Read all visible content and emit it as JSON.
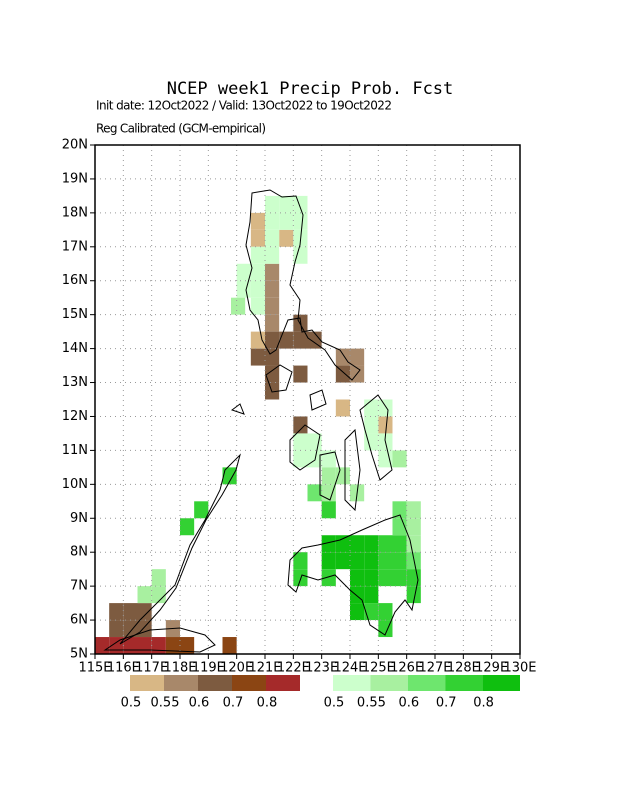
{
  "chart_data": {
    "type": "grid-map",
    "title": "NCEP week1 Precip Prob. Fcst",
    "subtitle": "Init date: 12Oct2022 / Valid: 13Oct2022 to 19Oct2022",
    "subtitle2": "Reg Calibrated (GCM-empirical)",
    "xlim": [
      115,
      130
    ],
    "ylim": [
      5,
      20
    ],
    "xticks": [
      {
        "value": 115,
        "label": "115E"
      },
      {
        "value": 116,
        "label": "116E"
      },
      {
        "value": 117,
        "label": "117E"
      },
      {
        "value": 118,
        "label": "118E"
      },
      {
        "value": 119,
        "label": "119E"
      },
      {
        "value": 120,
        "label": "120E"
      },
      {
        "value": 121,
        "label": "121E"
      },
      {
        "value": 122,
        "label": "122E"
      },
      {
        "value": 123,
        "label": "123E"
      },
      {
        "value": 124,
        "label": "124E"
      },
      {
        "value": 125,
        "label": "125E"
      },
      {
        "value": 126,
        "label": "126E"
      },
      {
        "value": 127,
        "label": "127E"
      },
      {
        "value": 128,
        "label": "128E"
      },
      {
        "value": 129,
        "label": "129E"
      },
      {
        "value": 130,
        "label": "130E"
      }
    ],
    "yticks": [
      {
        "value": 5,
        "label": "5N"
      },
      {
        "value": 6,
        "label": "6N"
      },
      {
        "value": 7,
        "label": "7N"
      },
      {
        "value": 8,
        "label": "8N"
      },
      {
        "value": 9,
        "label": "9N"
      },
      {
        "value": 10,
        "label": "10N"
      },
      {
        "value": 11,
        "label": "11N"
      },
      {
        "value": 12,
        "label": "12N"
      },
      {
        "value": 13,
        "label": "13N"
      },
      {
        "value": 14,
        "label": "14N"
      },
      {
        "value": 15,
        "label": "15N"
      },
      {
        "value": 16,
        "label": "16N"
      },
      {
        "value": 17,
        "label": "17N"
      },
      {
        "value": 18,
        "label": "18N"
      },
      {
        "value": 19,
        "label": "19N"
      },
      {
        "value": 20,
        "label": "20N"
      }
    ],
    "grid": true,
    "scales": [
      {
        "colors": [
          "#d8b785",
          "#a8886a",
          "#7d5b40",
          "#8b4513",
          "#a52a2a"
        ],
        "levels": [
          0.5,
          0.55,
          0.6,
          0.7,
          0.8
        ],
        "cells": [
          [
            120.5,
            17.5,
            0
          ],
          [
            120.5,
            17,
            0
          ],
          [
            121.5,
            17,
            0
          ],
          [
            121,
            16,
            1
          ],
          [
            121,
            15.5,
            1
          ],
          [
            121,
            15,
            1
          ],
          [
            121,
            14.5,
            1
          ],
          [
            121.5,
            14,
            2
          ],
          [
            121,
            14,
            2
          ],
          [
            121,
            13.5,
            2
          ],
          [
            120.5,
            13.5,
            2
          ],
          [
            121,
            13,
            2
          ],
          [
            121,
            12.5,
            2
          ],
          [
            122,
            14,
            2
          ],
          [
            122,
            14.5,
            2
          ],
          [
            122.5,
            14,
            2
          ],
          [
            122,
            13,
            2
          ],
          [
            123.5,
            13,
            2
          ],
          [
            123.5,
            13.5,
            1
          ],
          [
            124,
            13.5,
            1
          ],
          [
            124,
            13,
            1
          ],
          [
            120.5,
            14,
            0
          ],
          [
            123.5,
            12,
            0
          ],
          [
            125,
            11.5,
            0
          ],
          [
            122,
            11.5,
            2
          ],
          [
            115.5,
            6,
            2
          ],
          [
            116,
            6,
            2
          ],
          [
            116.5,
            6,
            2
          ],
          [
            115.5,
            5.5,
            2
          ],
          [
            116,
            5.5,
            2
          ],
          [
            116.5,
            5.5,
            2
          ],
          [
            117.5,
            5.5,
            1
          ],
          [
            117.5,
            5,
            3
          ],
          [
            118,
            5,
            3
          ],
          [
            115,
            5,
            4
          ],
          [
            115.5,
            5,
            4
          ],
          [
            116,
            5,
            4
          ],
          [
            116.5,
            5,
            4
          ],
          [
            117,
            5,
            4
          ],
          [
            119.5,
            5,
            3
          ]
        ]
      },
      {
        "colors": [
          "#ccffcc",
          "#a8f0a0",
          "#6ee66e",
          "#33d133",
          "#0fbf0f"
        ],
        "levels": [
          0.5,
          0.55,
          0.6,
          0.7,
          0.8
        ],
        "cells": [
          [
            121,
            18,
            0
          ],
          [
            121.5,
            18,
            0
          ],
          [
            122,
            18,
            0
          ],
          [
            121,
            17.5,
            0
          ],
          [
            121.5,
            17.5,
            0
          ],
          [
            122,
            17.5,
            0
          ],
          [
            121,
            17,
            0
          ],
          [
            122,
            17,
            0
          ],
          [
            120.5,
            16.5,
            0
          ],
          [
            121,
            16.5,
            0
          ],
          [
            122,
            16.5,
            0
          ],
          [
            120,
            16,
            0
          ],
          [
            120.5,
            16,
            0
          ],
          [
            120,
            15.5,
            0
          ],
          [
            120.5,
            15.5,
            0
          ],
          [
            119.8,
            15,
            1
          ],
          [
            120.5,
            15,
            0
          ],
          [
            122,
            11,
            0
          ],
          [
            122.5,
            11,
            0
          ],
          [
            122,
            10.5,
            0
          ],
          [
            122.5,
            10.5,
            0
          ],
          [
            123,
            10.5,
            0
          ],
          [
            124.5,
            12,
            0
          ],
          [
            125,
            12,
            0
          ],
          [
            124.5,
            11.5,
            0
          ],
          [
            124.5,
            11,
            0
          ],
          [
            125,
            11,
            0
          ],
          [
            125.5,
            10.5,
            1
          ],
          [
            125,
            10.5,
            0
          ],
          [
            123,
            10,
            1
          ],
          [
            123.5,
            10,
            1
          ],
          [
            124,
            9.5,
            1
          ],
          [
            123,
            9.5,
            1
          ],
          [
            122.5,
            9.5,
            2
          ],
          [
            123,
            9,
            3
          ],
          [
            119.5,
            10,
            3
          ],
          [
            118.5,
            9,
            3
          ],
          [
            118,
            8.5,
            3
          ],
          [
            117,
            7,
            1
          ],
          [
            116.5,
            6.5,
            1
          ],
          [
            117,
            6.5,
            1
          ],
          [
            122,
            7.5,
            3
          ],
          [
            122,
            7,
            3
          ],
          [
            123,
            8,
            4
          ],
          [
            123.5,
            8,
            4
          ],
          [
            124,
            8,
            4
          ],
          [
            123,
            7.5,
            4
          ],
          [
            123.5,
            7.5,
            4
          ],
          [
            124,
            7.5,
            4
          ],
          [
            124.5,
            7.5,
            4
          ],
          [
            124.5,
            8,
            4
          ],
          [
            125,
            8,
            3
          ],
          [
            125.5,
            8,
            3
          ],
          [
            125.5,
            8.5,
            2
          ],
          [
            126,
            8.5,
            1
          ],
          [
            125.5,
            9,
            2
          ],
          [
            126,
            9,
            1
          ],
          [
            126,
            8,
            1
          ],
          [
            124,
            7,
            4
          ],
          [
            124.5,
            7,
            4
          ],
          [
            124,
            6.5,
            4
          ],
          [
            124.5,
            6.5,
            4
          ],
          [
            125,
            7,
            3
          ],
          [
            125.5,
            7,
            3
          ],
          [
            125,
            7.5,
            3
          ],
          [
            125.5,
            7.5,
            3
          ],
          [
            126,
            7.5,
            2
          ],
          [
            126,
            7,
            3
          ],
          [
            126,
            6.5,
            3
          ],
          [
            124,
            6,
            4
          ],
          [
            124.5,
            6,
            3
          ],
          [
            125,
            6,
            3
          ],
          [
            125,
            5.5,
            3
          ],
          [
            123,
            7,
            3
          ]
        ]
      }
    ]
  }
}
